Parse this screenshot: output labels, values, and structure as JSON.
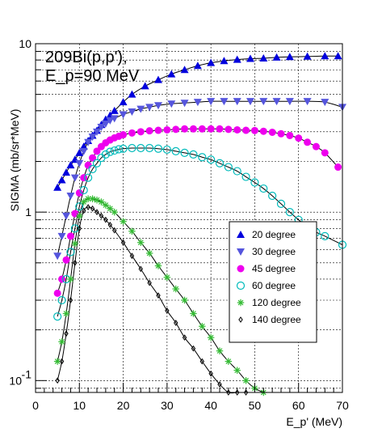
{
  "chart_data": {
    "type": "scatter",
    "title_lines": [
      "209Bi(p,p'),",
      "E_p=90 MeV"
    ],
    "xlabel": "E_p' (MeV)",
    "ylabel": "SIGMA  (mb/sr*MeV)",
    "xlim": [
      0,
      70
    ],
    "ylim": [
      0.085,
      10
    ],
    "yscale": "log",
    "grid": true,
    "legend_position": "lower-right",
    "x_ticks": [
      "0",
      "10",
      "20",
      "30",
      "40",
      "50",
      "60",
      "70"
    ],
    "y_ticks": [
      {
        "value": 10,
        "label": "10"
      },
      {
        "value": 1,
        "label": "1"
      },
      {
        "value": 0.1,
        "label": "10",
        "exp": "-1"
      }
    ],
    "series": [
      {
        "name": "20 degree",
        "marker": "triangle-up",
        "color": "#0000dd",
        "x": [
          5,
          6,
          7,
          8,
          9,
          10,
          11,
          12,
          13,
          14,
          15,
          16,
          17,
          18,
          20,
          22,
          25,
          28,
          31,
          34,
          37,
          40,
          43,
          46,
          49,
          52,
          55,
          58,
          62,
          66,
          69
        ],
        "y": [
          1.4,
          1.55,
          1.72,
          1.9,
          2.05,
          2.25,
          2.45,
          2.65,
          2.85,
          3.05,
          3.3,
          3.55,
          3.75,
          4.0,
          4.5,
          5.0,
          5.6,
          6.1,
          6.6,
          7.0,
          7.4,
          7.7,
          7.9,
          8.05,
          8.15,
          8.2,
          8.3,
          8.35,
          8.4,
          8.45,
          8.45
        ]
      },
      {
        "name": "30 degree",
        "marker": "triangle-down",
        "color": "#5555dd",
        "x": [
          5,
          6,
          7,
          8,
          9,
          10,
          11,
          12,
          13,
          14,
          15,
          16,
          17,
          18,
          20,
          22,
          24,
          26,
          28,
          31,
          34,
          37,
          40,
          43,
          46,
          49,
          52,
          55,
          58,
          62,
          66,
          70
        ],
        "y": [
          0.55,
          0.72,
          0.95,
          1.25,
          1.6,
          1.95,
          2.3,
          2.6,
          2.8,
          3.0,
          3.2,
          3.35,
          3.5,
          3.6,
          3.8,
          3.95,
          4.1,
          4.2,
          4.3,
          4.4,
          4.45,
          4.5,
          4.55,
          4.55,
          4.55,
          4.55,
          4.55,
          4.55,
          4.55,
          4.55,
          4.5,
          4.2
        ]
      },
      {
        "name": "45 degree",
        "marker": "circle",
        "color": "#ee00ee",
        "x": [
          5,
          6,
          7,
          8,
          9,
          10,
          11,
          12,
          13,
          14,
          15,
          16,
          17,
          18,
          19,
          20,
          22,
          24,
          26,
          28,
          30,
          32,
          34,
          36,
          38,
          40,
          42,
          44,
          46,
          48,
          50,
          52,
          54,
          56,
          58,
          60,
          62,
          64,
          66,
          69
        ],
        "y": [
          0.33,
          0.4,
          0.52,
          0.72,
          0.98,
          1.3,
          1.6,
          1.9,
          2.1,
          2.3,
          2.45,
          2.58,
          2.68,
          2.76,
          2.82,
          2.88,
          2.95,
          3.0,
          3.04,
          3.06,
          3.08,
          3.1,
          3.12,
          3.12,
          3.12,
          3.12,
          3.12,
          3.1,
          3.08,
          3.06,
          3.05,
          3.02,
          2.98,
          2.92,
          2.85,
          2.75,
          2.6,
          2.45,
          2.25,
          1.85
        ]
      },
      {
        "name": "60 degree",
        "marker": "open-circle",
        "color": "#00bbbb",
        "x": [
          5,
          6,
          7,
          8,
          9,
          10,
          11,
          12,
          13,
          14,
          15,
          16,
          17,
          18,
          19,
          20,
          22,
          24,
          26,
          28,
          30,
          32,
          34,
          36,
          38,
          40,
          42,
          44,
          46,
          48,
          50,
          52,
          54,
          56,
          58,
          60,
          62,
          64,
          66,
          70
        ],
        "y": [
          0.24,
          0.3,
          0.4,
          0.58,
          0.8,
          1.08,
          1.35,
          1.6,
          1.8,
          1.95,
          2.1,
          2.2,
          2.28,
          2.32,
          2.36,
          2.38,
          2.4,
          2.4,
          2.4,
          2.38,
          2.35,
          2.3,
          2.25,
          2.2,
          2.12,
          2.05,
          1.95,
          1.85,
          1.75,
          1.62,
          1.5,
          1.38,
          1.25,
          1.12,
          1.0,
          0.9,
          0.82,
          0.76,
          0.72,
          0.64
        ]
      },
      {
        "name": "120 degree",
        "marker": "star",
        "color": "#33bb33",
        "x": [
          5,
          6,
          7,
          8,
          9,
          10,
          11,
          12,
          13,
          14,
          15,
          16,
          17,
          18,
          20,
          22,
          24,
          26,
          28,
          30,
          32,
          34,
          36,
          38,
          40,
          42,
          44,
          46,
          48,
          50,
          52
        ],
        "y": [
          0.13,
          0.17,
          0.25,
          0.4,
          0.65,
          0.95,
          1.15,
          1.2,
          1.2,
          1.18,
          1.15,
          1.1,
          1.05,
          1.0,
          0.88,
          0.77,
          0.66,
          0.57,
          0.48,
          0.41,
          0.35,
          0.3,
          0.25,
          0.21,
          0.18,
          0.15,
          0.13,
          0.115,
          0.1,
          0.09,
          0.085
        ]
      },
      {
        "name": "140 degree",
        "marker": "diamond",
        "color": "#000000",
        "x": [
          5,
          6,
          7,
          8,
          9,
          10,
          11,
          12,
          13,
          14,
          15,
          16,
          17,
          18,
          20,
          22,
          24,
          26,
          28,
          30,
          32,
          34,
          36,
          38,
          40,
          42,
          44,
          46,
          48
        ],
        "y": [
          0.1,
          0.13,
          0.19,
          0.3,
          0.5,
          0.8,
          1.02,
          1.07,
          1.05,
          1.0,
          0.95,
          0.9,
          0.84,
          0.78,
          0.66,
          0.55,
          0.46,
          0.38,
          0.32,
          0.26,
          0.22,
          0.18,
          0.155,
          0.13,
          0.11,
          0.095,
          0.085,
          0.085,
          0.085
        ]
      }
    ]
  }
}
